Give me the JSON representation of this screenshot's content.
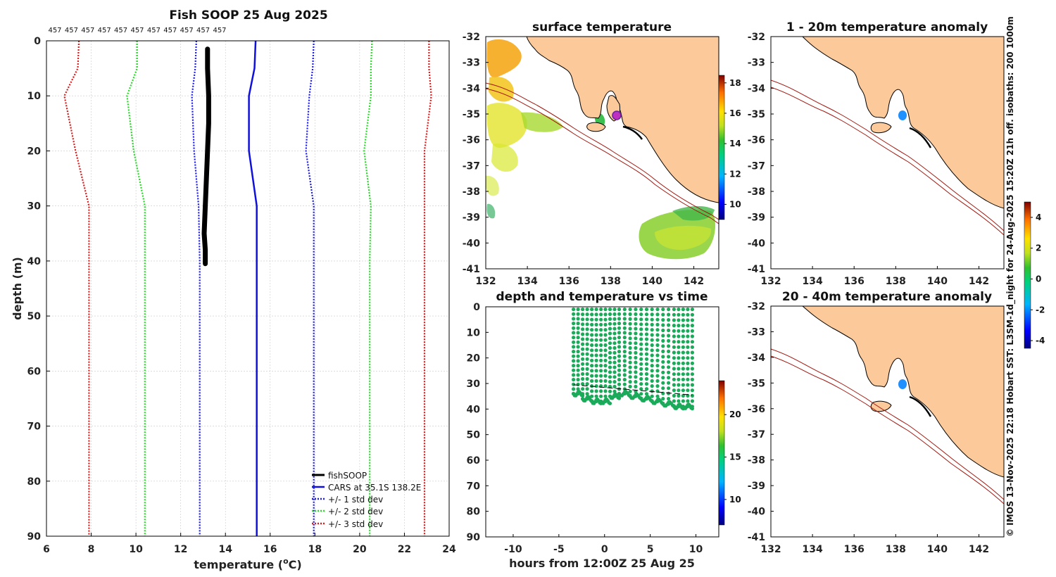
{
  "colors": {
    "land": "#fbc99a",
    "iso": "#a01810",
    "coast": "#000000",
    "fish": "#000000",
    "cars": "#1010dd",
    "sd1": "#1a1aee",
    "sd2": "#22dd22",
    "sd3": "#dd1a1a",
    "pts": "#1aaa5a"
  },
  "chart_data": [
    {
      "id": "profile",
      "type": "line",
      "title": "Fish SOOP 25 Aug 2025",
      "xlabel_main": "temperature (",
      "xlabel_sup": "o",
      "xlabel_tail": "C)",
      "ylabel": "depth (m)",
      "xlim": [
        6,
        24
      ],
      "ylim": [
        90,
        0
      ],
      "xticks": [
        6,
        8,
        10,
        12,
        14,
        16,
        18,
        20,
        22,
        24
      ],
      "yticks": [
        0,
        10,
        20,
        30,
        40,
        50,
        60,
        70,
        80,
        90
      ],
      "top_labels": [
        "457",
        "457",
        "457",
        "457",
        "457",
        "457",
        "457",
        "457",
        "457",
        "457",
        "457"
      ],
      "series": [
        {
          "name": "fishSOOP",
          "depth": [
            1.5,
            5,
            10,
            15,
            20,
            25,
            30,
            35,
            38,
            40.5
          ],
          "temp": [
            13.2,
            13.2,
            13.25,
            13.25,
            13.2,
            13.15,
            13.1,
            13.05,
            13.1,
            13.1
          ]
        },
        {
          "name": "CARS at 35.1S 138.2E",
          "depth": [
            0,
            5,
            10,
            20,
            30,
            40,
            50,
            60,
            70,
            80,
            90
          ],
          "temp": [
            15.35,
            15.3,
            15.05,
            15.05,
            15.4,
            15.4,
            15.4,
            15.4,
            15.4,
            15.4,
            15.4
          ]
        },
        {
          "name": "+/- 1 std dev",
          "depth": [
            0,
            5,
            10,
            20,
            30,
            40,
            50,
            60,
            70,
            80,
            90
          ],
          "lower": [
            12.7,
            12.65,
            12.5,
            12.6,
            12.8,
            12.85,
            12.85,
            12.85,
            12.85,
            12.85,
            12.85
          ],
          "upper": [
            17.95,
            17.9,
            17.75,
            17.6,
            17.95,
            17.95,
            17.95,
            17.95,
            17.95,
            17.95,
            17.95
          ]
        },
        {
          "name": "+/- 2 std dev",
          "depth": [
            0,
            5,
            10,
            20,
            30,
            40,
            50,
            60,
            70,
            80,
            90
          ],
          "lower": [
            10.05,
            10.05,
            9.6,
            9.9,
            10.4,
            10.4,
            10.4,
            10.4,
            10.4,
            10.4,
            10.4
          ],
          "upper": [
            20.55,
            20.5,
            20.5,
            20.2,
            20.5,
            20.45,
            20.45,
            20.45,
            20.45,
            20.45,
            20.45
          ]
        },
        {
          "name": "+/- 3 std dev",
          "depth": [
            0,
            5,
            10,
            20,
            30,
            40,
            50,
            60,
            70,
            80,
            90
          ],
          "lower": [
            7.45,
            7.4,
            6.8,
            7.3,
            7.9,
            7.9,
            7.9,
            7.9,
            7.9,
            7.9,
            7.9
          ],
          "upper": [
            23.1,
            23.1,
            23.2,
            22.9,
            22.9,
            22.9,
            22.9,
            22.9,
            22.9,
            22.9,
            22.9
          ]
        }
      ]
    },
    {
      "id": "sst_map",
      "type": "heatmap",
      "title": "surface temperature",
      "xticks": [
        132,
        134,
        136,
        138,
        140,
        142
      ],
      "yticks": [
        -32,
        -33,
        -34,
        -35,
        -36,
        -37,
        -38,
        -39,
        -40,
        -41
      ],
      "xlim": [
        132,
        143.2
      ],
      "ylim": [
        -41,
        -32
      ],
      "colorbar_ticks": [
        10,
        12,
        14,
        16,
        18
      ],
      "colorbar_range": [
        9,
        18.5
      ]
    },
    {
      "id": "depth_time",
      "type": "scatter",
      "title": "depth and temperature vs time",
      "xlabel": "hours from 12:00Z 25 Aug 25",
      "xlim": [
        -13,
        12.5
      ],
      "ylim": [
        90,
        0
      ],
      "xticks": [
        -10,
        -5,
        0,
        5,
        10
      ],
      "yticks": [
        0,
        10,
        20,
        30,
        40,
        50,
        60,
        70,
        80,
        90
      ],
      "colorbar_ticks": [
        10,
        15,
        20
      ],
      "colorbar_range": [
        7,
        24
      ],
      "profiles": [
        {
          "t_start": -3.4,
          "t_end": -2.4,
          "max_depth": 34
        },
        {
          "t_start": -2.4,
          "t_end": -1.4,
          "max_depth": 36
        },
        {
          "t_start": -1.4,
          "t_end": -0.4,
          "max_depth": 37
        },
        {
          "t_start": -0.4,
          "t_end": 0.6,
          "max_depth": 37
        },
        {
          "t_start": 0.6,
          "t_end": 1.6,
          "max_depth": 35
        },
        {
          "t_start": 1.6,
          "t_end": 2.8,
          "max_depth": 34
        },
        {
          "t_start": 2.8,
          "t_end": 4.0,
          "max_depth": 35
        },
        {
          "t_start": 4.0,
          "t_end": 5.2,
          "max_depth": 36
        },
        {
          "t_start": 5.2,
          "t_end": 6.4,
          "max_depth": 37
        },
        {
          "t_start": 6.4,
          "t_end": 7.6,
          "max_depth": 38
        },
        {
          "t_start": 7.6,
          "t_end": 8.6,
          "max_depth": 39
        },
        {
          "t_start": 8.6,
          "t_end": 9.6,
          "max_depth": 39
        }
      ],
      "bottom_line": {
        "t": [
          -3.4,
          9.6
        ],
        "depth": [
          30.5,
          34.5
        ]
      }
    },
    {
      "id": "anom_1_20",
      "type": "heatmap",
      "title": "1 - 20m temperature anomaly",
      "xticks": [
        132,
        134,
        136,
        138,
        140,
        142
      ],
      "yticks": [
        -32,
        -33,
        -34,
        -35,
        -36,
        -37,
        -38,
        -39,
        -40,
        -41
      ],
      "xlim": [
        132,
        143.2
      ],
      "ylim": [
        -41,
        -32
      ],
      "marker": {
        "lon": 138.2,
        "lat": -35.1
      }
    },
    {
      "id": "anom_20_40",
      "type": "heatmap",
      "title": "20 - 40m temperature anomaly",
      "xticks": [
        132,
        134,
        136,
        138,
        140,
        142
      ],
      "yticks": [
        -32,
        -33,
        -34,
        -35,
        -36,
        -37,
        -38,
        -39,
        -40,
        -41
      ],
      "xlim": [
        132,
        143.2
      ],
      "ylim": [
        -41,
        -32
      ],
      "marker": {
        "lon": 138.2,
        "lat": -35.0
      },
      "colorbar_ticks": [
        -4,
        -2,
        0,
        2,
        4
      ],
      "colorbar_range": [
        -4.5,
        5
      ]
    }
  ],
  "credit": "© IMOS 13-Nov-2025 22:18 Hobart SST: L3SM-1d_night for 24-Aug-2025 15:20Z 21h off. isobaths: 200  1000m"
}
